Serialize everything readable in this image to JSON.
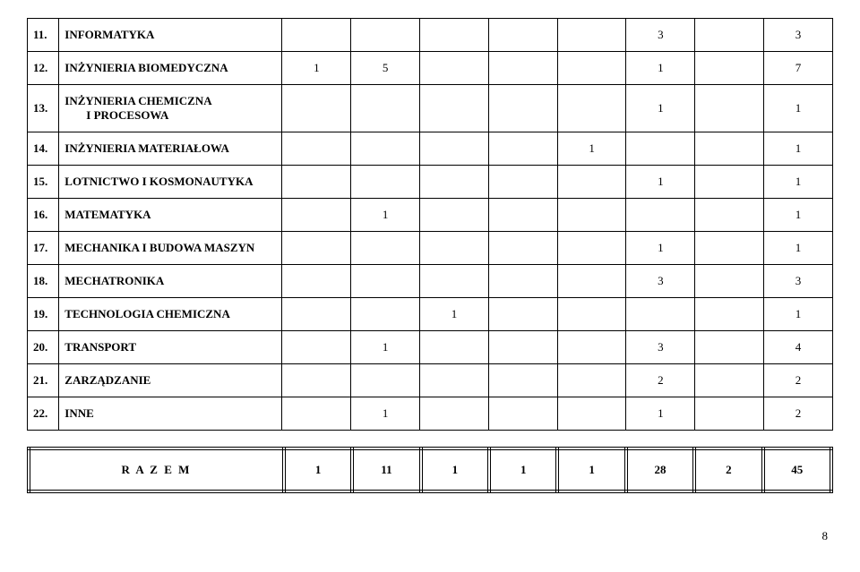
{
  "rows": [
    {
      "num": "11.",
      "label": "INFORMATYKA",
      "sublabel": "",
      "c": [
        "",
        "",
        "",
        "",
        "",
        "3",
        "",
        "3"
      ]
    },
    {
      "num": "12.",
      "label": "INŻYNIERIA BIOMEDYCZNA",
      "sublabel": "",
      "c": [
        "1",
        "5",
        "",
        "",
        "",
        "1",
        "",
        "7"
      ]
    },
    {
      "num": "13.",
      "label": "INŻYNIERIA CHEMICZNA",
      "sublabel": "I PROCESOWA",
      "c": [
        "",
        "",
        "",
        "",
        "",
        "1",
        "",
        "1"
      ]
    },
    {
      "num": "14.",
      "label": "INŻYNIERIA MATERIAŁOWA",
      "sublabel": "",
      "c": [
        "",
        "",
        "",
        "",
        "1",
        "",
        "",
        "1"
      ]
    },
    {
      "num": "15.",
      "label": "LOTNICTWO I KOSMONAUTYKA",
      "sublabel": "",
      "c": [
        "",
        "",
        "",
        "",
        "",
        "1",
        "",
        "1"
      ]
    },
    {
      "num": "16.",
      "label": "MATEMATYKA",
      "sublabel": "",
      "c": [
        "",
        "1",
        "",
        "",
        "",
        "",
        "",
        "1"
      ]
    },
    {
      "num": "17.",
      "label": "MECHANIKA I BUDOWA MASZYN",
      "sublabel": "",
      "c": [
        "",
        "",
        "",
        "",
        "",
        "1",
        "",
        "1"
      ]
    },
    {
      "num": "18.",
      "label": "MECHATRONIKA",
      "sublabel": "",
      "c": [
        "",
        "",
        "",
        "",
        "",
        "3",
        "",
        "3"
      ]
    },
    {
      "num": "19.",
      "label": "TECHNOLOGIA  CHEMICZNA",
      "sublabel": "",
      "c": [
        "",
        "",
        "1",
        "",
        "",
        "",
        "",
        "1"
      ]
    },
    {
      "num": "20.",
      "label": "TRANSPORT",
      "sublabel": "",
      "c": [
        "",
        "1",
        "",
        "",
        "",
        "3",
        "",
        "4"
      ]
    },
    {
      "num": "21.",
      "label": "ZARZĄDZANIE",
      "sublabel": "",
      "c": [
        "",
        "",
        "",
        "",
        "",
        "2",
        "",
        "2"
      ]
    },
    {
      "num": "22.",
      "label": "INNE",
      "sublabel": "",
      "c": [
        "",
        "1",
        "",
        "",
        "",
        "1",
        "",
        "2"
      ]
    }
  ],
  "total": {
    "label": "R A Z E M",
    "c": [
      "1",
      "11",
      "1",
      "1",
      "1",
      "28",
      "2",
      "45"
    ]
  },
  "page_number": "8"
}
